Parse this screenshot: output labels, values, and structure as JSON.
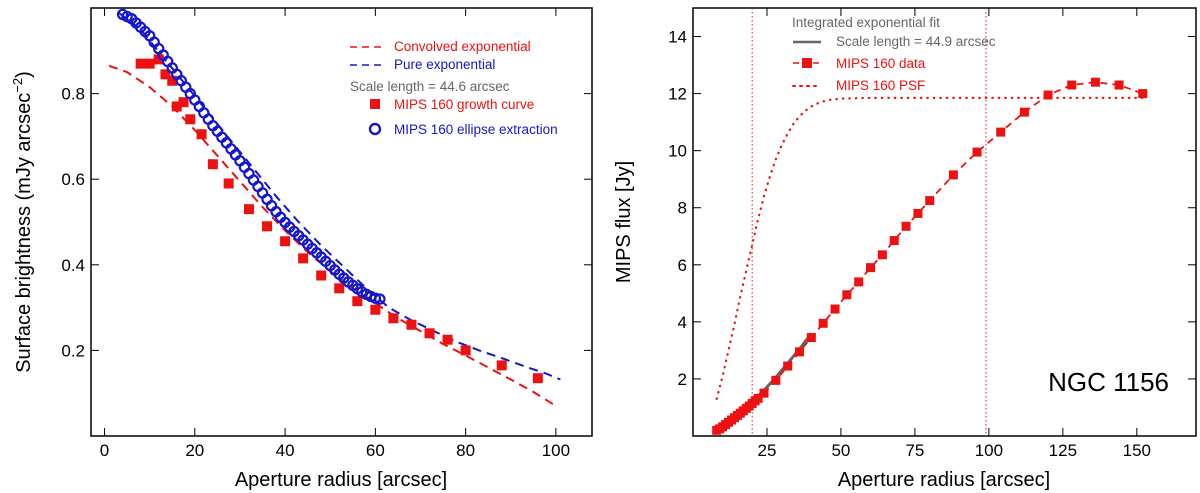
{
  "colors": {
    "red": "#ee1111",
    "blue": "#1515cc",
    "gray": "#666666",
    "black": "#000000"
  },
  "chart_data": [
    {
      "type": "scatter",
      "xlabel": "Aperture radius [arcsec]",
      "ylabel_main": "Surface brightness (mJy arcsec",
      "ylabel_sup": "−2",
      "ylabel_end": ")",
      "xlim": [
        -3,
        108
      ],
      "ylim": [
        0.0,
        1.0
      ],
      "xticks": [
        0,
        20,
        40,
        60,
        80,
        100
      ],
      "yticks": [
        0.2,
        0.4,
        0.6,
        0.8
      ],
      "xtick_labels": [
        "0",
        "20",
        "40",
        "60",
        "80",
        "100"
      ],
      "ytick_labels": [
        "0.2",
        "0.4",
        "0.6",
        "0.8"
      ],
      "legend": {
        "convolved": "Convolved exponential",
        "pure": "Pure exponential",
        "scale": "Scale length =  44.6  arcsec",
        "growth": "MIPS 160 growth curve",
        "ellipse": "MIPS 160 ellipse extraction"
      },
      "series": [
        {
          "name": "Convolved exponential",
          "style": "dashed",
          "color": "red",
          "x": [
            1,
            5,
            10,
            15,
            20,
            25,
            30,
            35,
            40,
            45,
            50,
            55,
            60,
            65,
            70,
            75,
            80,
            85,
            90,
            95,
            100
          ],
          "y": [
            0.865,
            0.85,
            0.815,
            0.77,
            0.715,
            0.655,
            0.595,
            0.535,
            0.48,
            0.43,
            0.385,
            0.345,
            0.31,
            0.275,
            0.245,
            0.215,
            0.188,
            0.16,
            0.132,
            0.103,
            0.07
          ]
        },
        {
          "name": "Pure exponential",
          "style": "dashed",
          "color": "blue",
          "x": [
            3,
            8,
            13,
            18,
            23,
            28,
            33,
            38,
            43,
            48,
            53,
            58,
            63,
            68,
            73,
            78,
            83,
            88,
            93,
            98,
            101
          ],
          "y": [
            0.99,
            0.95,
            0.885,
            0.82,
            0.755,
            0.69,
            0.625,
            0.56,
            0.5,
            0.445,
            0.395,
            0.345,
            0.3,
            0.27,
            0.245,
            0.22,
            0.2,
            0.182,
            0.163,
            0.145,
            0.132
          ]
        },
        {
          "name": "MIPS 160 growth curve",
          "style": "squares",
          "color": "red",
          "x": [
            8,
            10,
            12,
            13.5,
            15,
            16,
            17.5,
            19,
            21.5,
            24,
            27.5,
            32,
            36,
            40,
            44,
            48,
            52,
            56,
            60,
            64,
            68,
            72,
            76,
            80,
            88,
            96
          ],
          "y": [
            0.87,
            0.87,
            0.88,
            0.845,
            0.83,
            0.77,
            0.78,
            0.74,
            0.705,
            0.635,
            0.59,
            0.53,
            0.49,
            0.455,
            0.415,
            0.375,
            0.345,
            0.315,
            0.295,
            0.275,
            0.26,
            0.24,
            0.225,
            0.2,
            0.165,
            0.135
          ]
        },
        {
          "name": "MIPS 160 ellipse extraction",
          "style": "circles",
          "color": "blue",
          "x": [
            4,
            5,
            6,
            7,
            8,
            9,
            10,
            11,
            12,
            13,
            14,
            15,
            16,
            17,
            18,
            19,
            20,
            21,
            22,
            23,
            24,
            25,
            26,
            27,
            28,
            29,
            30,
            31,
            32,
            33,
            34,
            35,
            36,
            37,
            38,
            39,
            40,
            41,
            42,
            43,
            44,
            45,
            46,
            47,
            48,
            49,
            50,
            51,
            52,
            53,
            54,
            55,
            56,
            57,
            58,
            59,
            60,
            61
          ],
          "y": [
            0.985,
            0.98,
            0.975,
            0.965,
            0.955,
            0.945,
            0.935,
            0.92,
            0.905,
            0.89,
            0.875,
            0.86,
            0.845,
            0.83,
            0.815,
            0.8,
            0.785,
            0.77,
            0.755,
            0.74,
            0.725,
            0.712,
            0.698,
            0.685,
            0.671,
            0.657,
            0.643,
            0.628,
            0.613,
            0.598,
            0.583,
            0.568,
            0.553,
            0.538,
            0.524,
            0.511,
            0.499,
            0.488,
            0.478,
            0.468,
            0.458,
            0.448,
            0.438,
            0.428,
            0.418,
            0.408,
            0.398,
            0.388,
            0.378,
            0.369,
            0.36,
            0.352,
            0.344,
            0.337,
            0.331,
            0.326,
            0.322,
            0.32
          ]
        }
      ]
    },
    {
      "type": "line",
      "xlabel": "Aperture radius [arcsec]",
      "ylabel": "MIPS flux [Jy]",
      "xlim": [
        0,
        170
      ],
      "ylim": [
        0,
        15
      ],
      "xticks": [
        25,
        50,
        75,
        100,
        125,
        150
      ],
      "yticks": [
        2,
        4,
        6,
        8,
        10,
        12,
        14
      ],
      "xtick_labels": [
        "25",
        "50",
        "75",
        "100",
        "125",
        "150"
      ],
      "ytick_labels": [
        "2",
        "4",
        "6",
        "8",
        "10",
        "12",
        "14"
      ],
      "vlines": [
        20,
        99
      ],
      "annotation": "NGC 1156",
      "legend": {
        "title": "Integrated exponential fit",
        "scale": "Scale length =  44.9  arcsec",
        "data": "MIPS 160 data",
        "psf": "MIPS 160 PSF"
      },
      "series": [
        {
          "name": "Integrated exponential fit",
          "style": "solid",
          "color": "gray",
          "x": [
            8,
            12,
            16,
            20,
            24,
            28,
            32,
            36,
            40
          ],
          "y": [
            0.2,
            0.5,
            0.85,
            1.2,
            1.6,
            2.05,
            2.55,
            3.05,
            3.6
          ]
        },
        {
          "name": "MIPS 160 data",
          "style": "dashed-squares",
          "color": "red",
          "x": [
            8,
            9,
            10,
            11,
            12,
            13,
            14,
            15,
            16,
            17,
            18,
            19,
            20,
            21,
            22,
            24,
            28,
            32,
            36,
            40,
            44,
            48,
            52,
            56,
            60,
            64,
            68,
            72,
            76,
            80,
            88,
            96,
            104,
            112,
            120,
            128,
            136,
            144,
            152
          ],
          "y": [
            0.2,
            0.25,
            0.32,
            0.4,
            0.48,
            0.56,
            0.64,
            0.72,
            0.8,
            0.88,
            0.97,
            1.05,
            1.14,
            1.23,
            1.32,
            1.5,
            1.95,
            2.45,
            2.95,
            3.45,
            3.95,
            4.45,
            4.95,
            5.4,
            5.9,
            6.35,
            6.85,
            7.35,
            7.8,
            8.25,
            9.15,
            9.95,
            10.65,
            11.35,
            11.95,
            12.3,
            12.4,
            12.3,
            12.0
          ]
        },
        {
          "name": "MIPS 160 PSF",
          "style": "dotted",
          "color": "red",
          "x": [
            8,
            10,
            12,
            14,
            16,
            18,
            20,
            22,
            24,
            26,
            28,
            30,
            32,
            34,
            36,
            38,
            40,
            43,
            46,
            50,
            55,
            60,
            70,
            80,
            90,
            100,
            110,
            120,
            130,
            140,
            152
          ],
          "y": [
            1.3,
            2.1,
            3.0,
            3.9,
            4.9,
            5.8,
            6.7,
            7.6,
            8.4,
            9.1,
            9.7,
            10.2,
            10.6,
            10.95,
            11.2,
            11.4,
            11.55,
            11.7,
            11.78,
            11.82,
            11.84,
            11.85,
            11.85,
            11.85,
            11.85,
            11.85,
            11.85,
            11.85,
            11.85,
            11.85,
            11.85
          ]
        }
      ]
    }
  ]
}
